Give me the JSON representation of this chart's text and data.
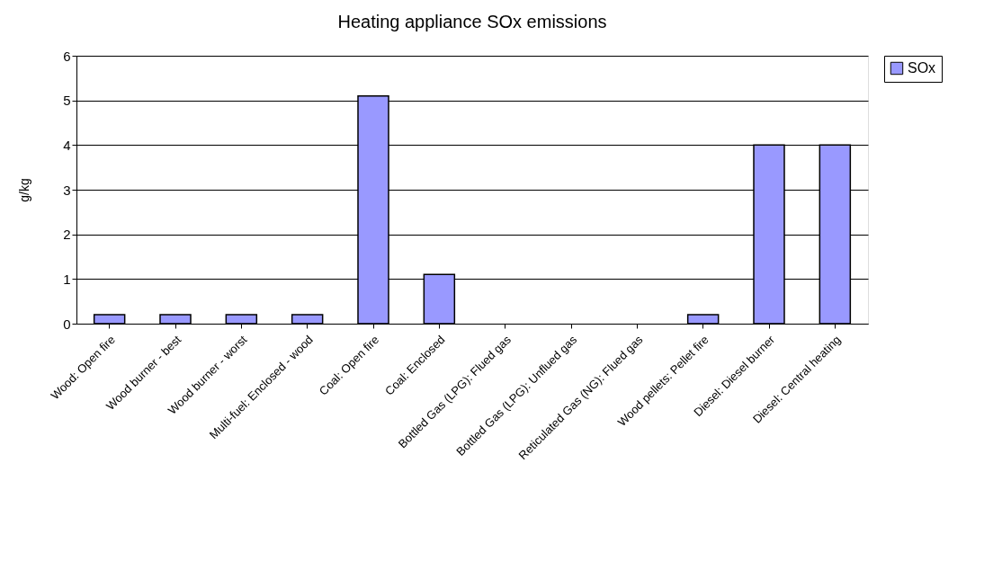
{
  "chart_data": {
    "type": "bar",
    "title": "Heating appliance SOx emissions",
    "ylabel": "g/kg",
    "categories": [
      "Wood: Open fire",
      "Wood burner - best",
      "Wood burner - worst",
      "Multi-fuel: Enclosed - wood",
      "Coal: Open fire",
      "Coal: Enclosed",
      "Bottled Gas (LPG): Flued gas",
      "Bottled Gas (LPG): Unflued gas",
      "Reticulated Gas (NG): Flued gas",
      "Wood pellets: Pellet fire",
      "Diesel: Diesel burner",
      "Diesel: Central heating"
    ],
    "series": [
      {
        "name": "SOx",
        "color": "#9999ff",
        "values": [
          0.2,
          0.2,
          0.2,
          0.2,
          5.1,
          1.1,
          0,
          0,
          0,
          0.2,
          4,
          4
        ]
      }
    ],
    "ylim": [
      0,
      6
    ],
    "yticks": [
      0,
      1,
      2,
      3,
      4,
      5,
      6
    ],
    "grid": "y",
    "legend": "right"
  }
}
